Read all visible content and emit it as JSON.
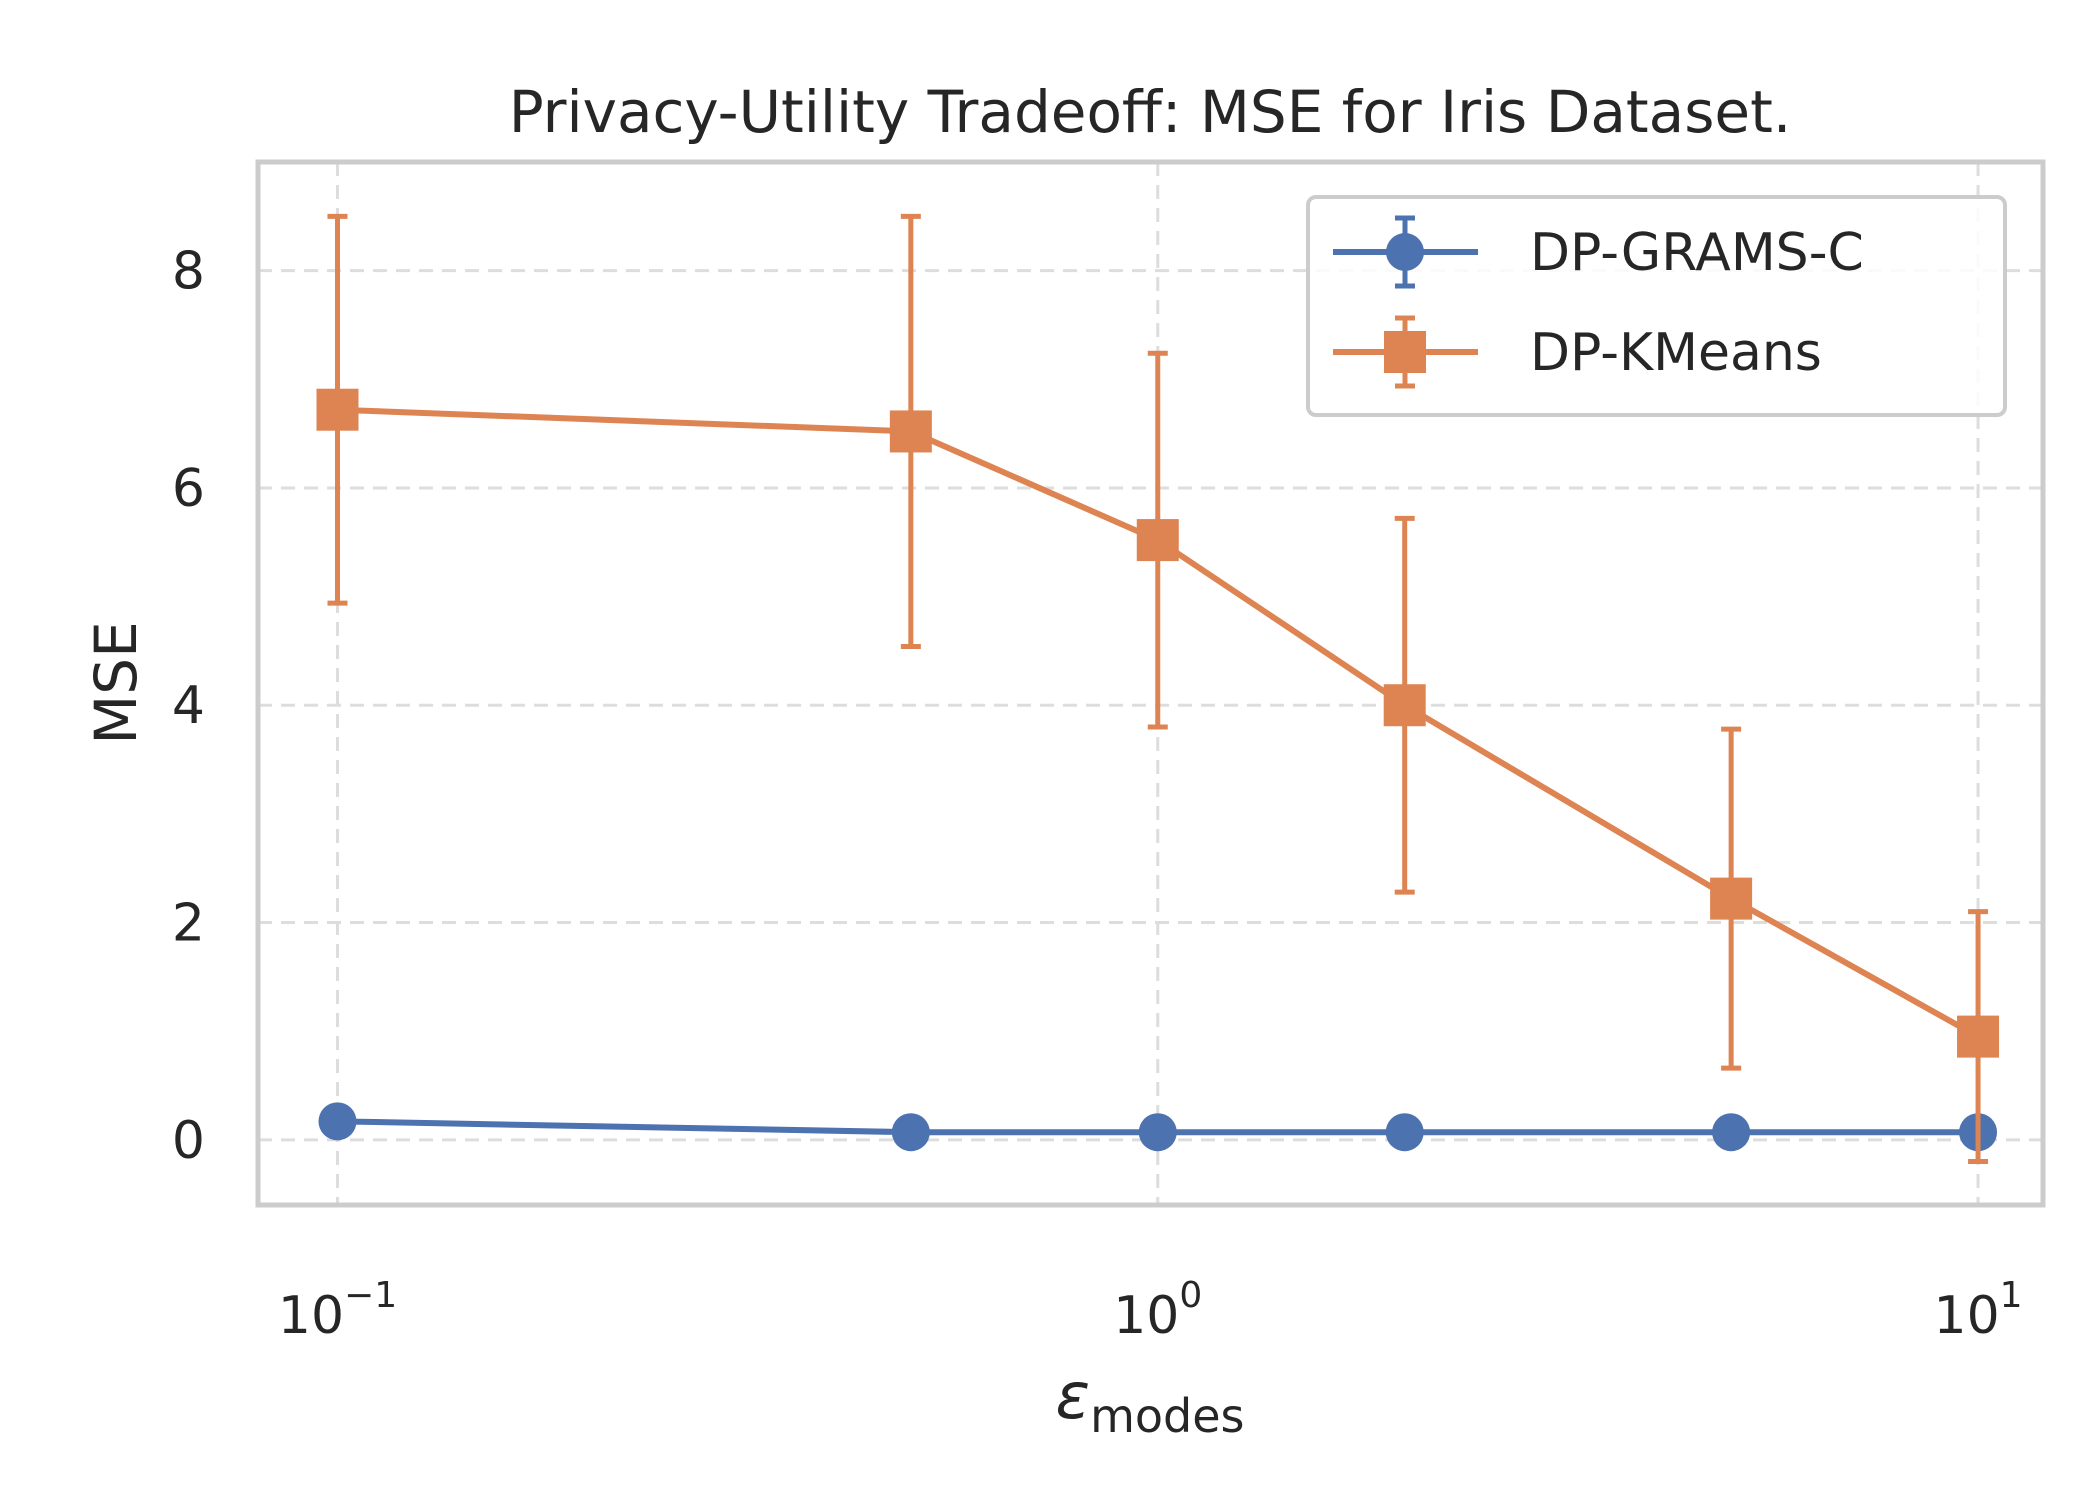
{
  "chart_data": {
    "type": "line",
    "title": "Privacy-Utility Tradeoff: MSE for Iris Dataset.",
    "xlabel": "ε",
    "xlabel_subscript": "modes",
    "ylabel": "MSE",
    "xscale": "log",
    "xlim": [
      0.08,
      12
    ],
    "ylim": [
      -0.6,
      9.0
    ],
    "yticks": [
      0,
      2,
      4,
      6,
      8
    ],
    "xticks": [
      {
        "value": 0.1,
        "base": "10",
        "exp": "−1"
      },
      {
        "value": 1,
        "base": "10",
        "exp": "0"
      },
      {
        "value": 10,
        "base": "10",
        "exp": "1"
      }
    ],
    "grid": true,
    "legend_position": "top-right",
    "series": [
      {
        "name": "DP-GRAMS-C",
        "color": "#4C72B0",
        "marker": "circle",
        "x": [
          0.1,
          0.5,
          1,
          2,
          5,
          10
        ],
        "y": [
          0.17,
          0.07,
          0.07,
          0.07,
          0.07,
          0.07
        ],
        "err": [
          0,
          0,
          0,
          0,
          0,
          0
        ]
      },
      {
        "name": "DP-KMeans",
        "color": "#DD8452",
        "marker": "square",
        "x": [
          0.1,
          0.5,
          1,
          2,
          5,
          10
        ],
        "y": [
          6.72,
          6.52,
          5.52,
          4.0,
          2.22,
          0.95
        ],
        "err": [
          1.78,
          1.98,
          1.72,
          1.72,
          1.56,
          1.15
        ]
      }
    ]
  }
}
